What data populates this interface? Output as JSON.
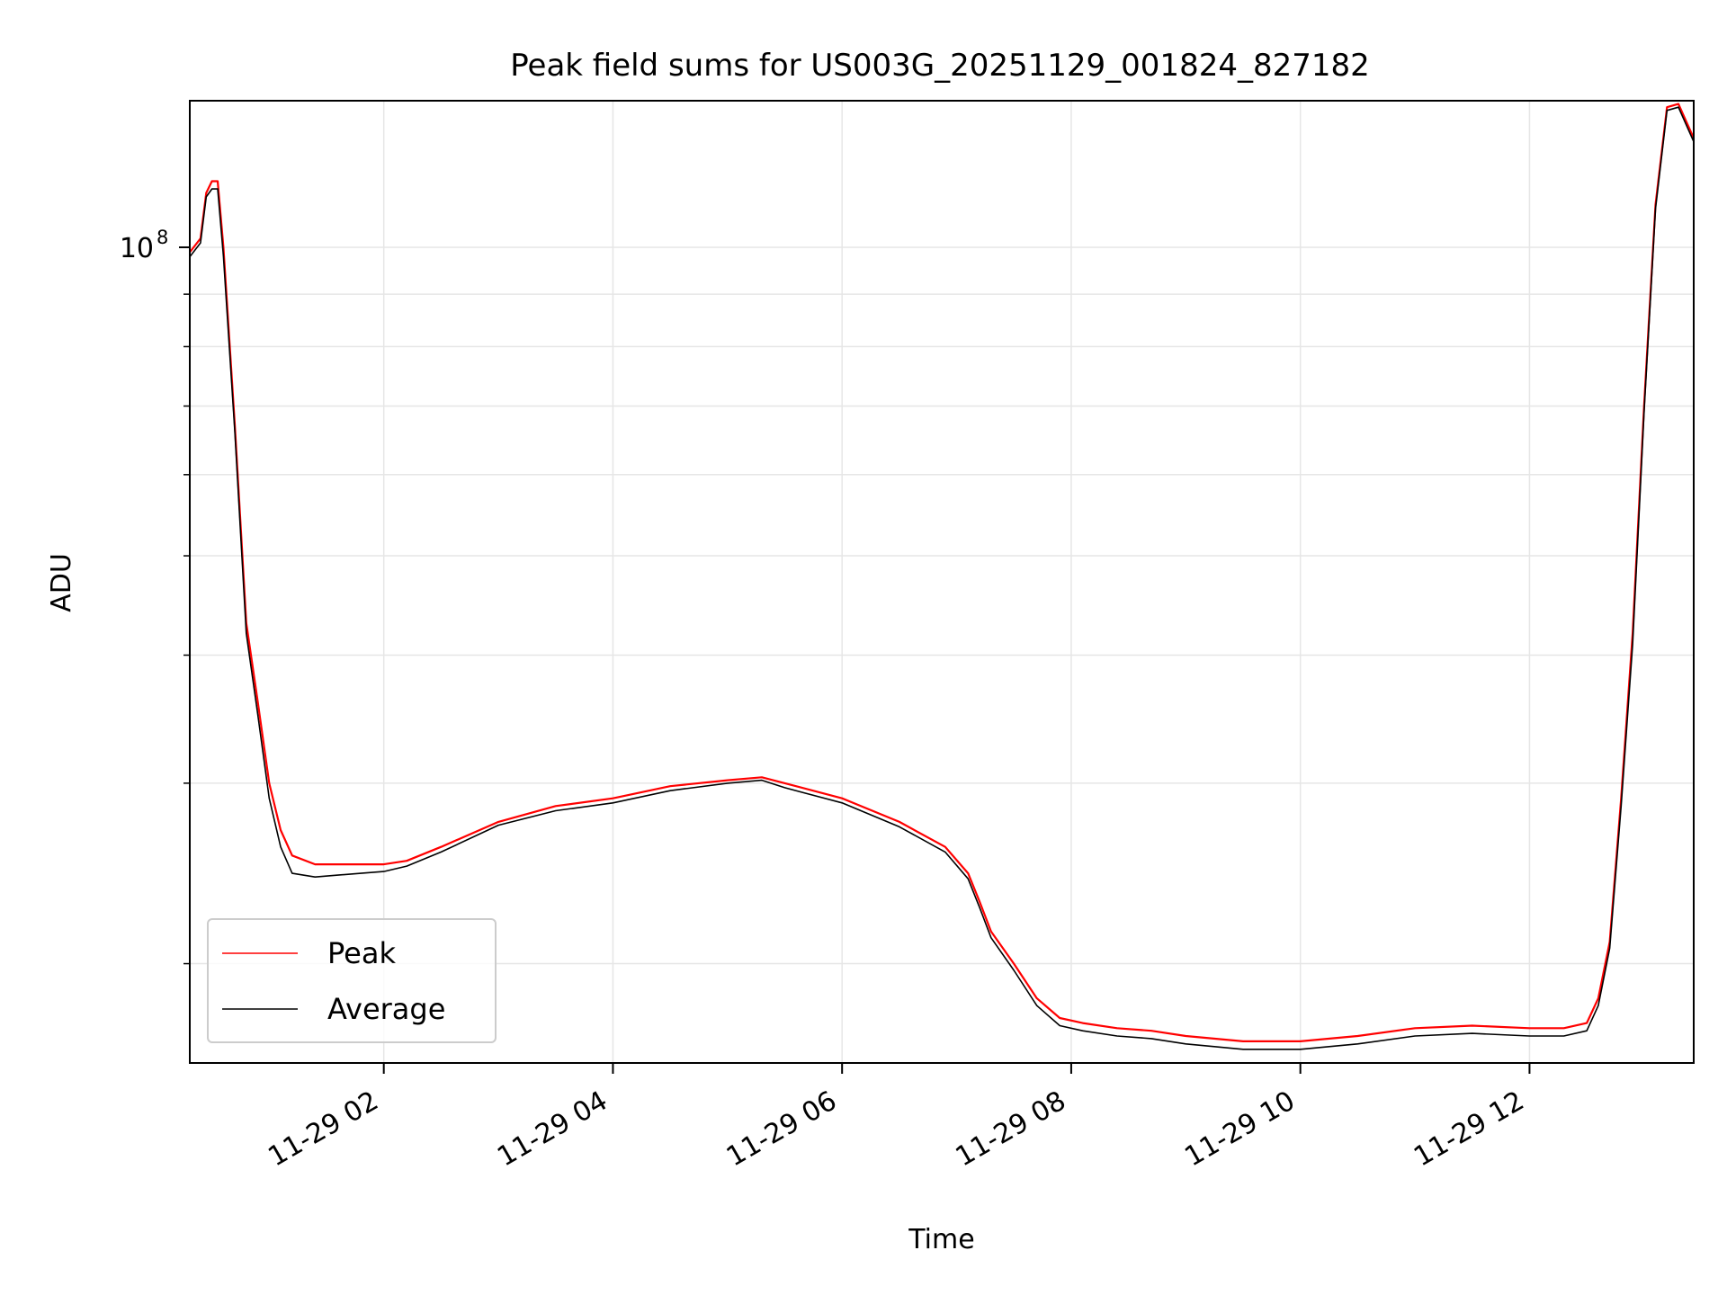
{
  "chart_data": {
    "type": "line",
    "title": "Peak field sums for US003G_20251129_001824_827182",
    "xlabel": "Time",
    "ylabel": "ADU",
    "yscale": "log",
    "xlim": [
      0.3067,
      13.4333
    ],
    "ylim": [
      16000000,
      139000000
    ],
    "grid": true,
    "legend_position": "lower-left",
    "x_ticks": [
      {
        "value": 2,
        "label": "11-29 02"
      },
      {
        "value": 4,
        "label": "11-29 04"
      },
      {
        "value": 6,
        "label": "11-29 06"
      },
      {
        "value": 8,
        "label": "11-29 08"
      },
      {
        "value": 10,
        "label": "11-29 10"
      },
      {
        "value": 12,
        "label": "11-29 12"
      }
    ],
    "y_major_ticks": [
      {
        "value": 100000000,
        "base": "10",
        "exponent": "8"
      }
    ],
    "y_minor_ticks": [
      20000000,
      30000000,
      40000000,
      50000000,
      60000000,
      70000000,
      80000000,
      90000000
    ],
    "colors": {
      "peak": "#ff0000",
      "average": "#000000",
      "grid": "#e6e6e6"
    },
    "series": [
      {
        "name": "Peak",
        "color": "#ff0000",
        "x": [
          0.31,
          0.4,
          0.45,
          0.5,
          0.55,
          0.6,
          0.7,
          0.8,
          0.9,
          1.0,
          1.1,
          1.2,
          1.4,
          1.6,
          1.8,
          2.0,
          2.2,
          2.5,
          3.0,
          3.5,
          4.0,
          4.5,
          5.0,
          5.3,
          5.5,
          6.0,
          6.5,
          6.9,
          7.1,
          7.2,
          7.3,
          7.5,
          7.7,
          7.9,
          8.1,
          8.4,
          8.7,
          9.0,
          9.5,
          10.0,
          10.5,
          11.0,
          11.5,
          12.0,
          12.3,
          12.5,
          12.6,
          12.7,
          12.8,
          12.9,
          13.0,
          13.1,
          13.2,
          13.3,
          13.43
        ],
        "values": [
          99000000,
          102000000,
          113000000,
          116000000,
          116000000,
          100000000,
          67000000,
          43000000,
          36000000,
          30000000,
          27000000,
          25500000,
          25000000,
          25000000,
          25000000,
          25000000,
          25200000,
          26000000,
          27500000,
          28500000,
          29000000,
          29800000,
          30200000,
          30400000,
          30000000,
          29000000,
          27500000,
          26000000,
          24500000,
          23000000,
          21500000,
          20000000,
          18500000,
          17700000,
          17500000,
          17300000,
          17200000,
          17000000,
          16800000,
          16800000,
          17000000,
          17300000,
          17400000,
          17300000,
          17300000,
          17500000,
          18500000,
          21000000,
          29000000,
          42000000,
          70000000,
          110000000,
          137000000,
          138000000,
          128000000
        ]
      },
      {
        "name": "Average",
        "color": "#000000",
        "x": [
          0.31,
          0.4,
          0.45,
          0.5,
          0.55,
          0.6,
          0.7,
          0.8,
          0.9,
          1.0,
          1.1,
          1.2,
          1.4,
          1.6,
          1.8,
          2.0,
          2.2,
          2.5,
          3.0,
          3.5,
          4.0,
          4.5,
          5.0,
          5.3,
          5.5,
          6.0,
          6.5,
          6.9,
          7.1,
          7.2,
          7.3,
          7.5,
          7.7,
          7.9,
          8.1,
          8.4,
          8.7,
          9.0,
          9.5,
          10.0,
          10.5,
          11.0,
          11.5,
          12.0,
          12.3,
          12.5,
          12.6,
          12.7,
          12.8,
          12.9,
          13.0,
          13.1,
          13.2,
          13.3,
          13.43
        ],
        "values": [
          98000000,
          101000000,
          112000000,
          114000000,
          114000000,
          98000000,
          66000000,
          42000000,
          35000000,
          29000000,
          26000000,
          24500000,
          24300000,
          24400000,
          24500000,
          24600000,
          24900000,
          25700000,
          27300000,
          28200000,
          28700000,
          29500000,
          30000000,
          30200000,
          29700000,
          28700000,
          27200000,
          25700000,
          24200000,
          22700000,
          21200000,
          19700000,
          18200000,
          17400000,
          17200000,
          17000000,
          16900000,
          16700000,
          16500000,
          16500000,
          16700000,
          17000000,
          17100000,
          17000000,
          17000000,
          17200000,
          18200000,
          20700000,
          28500000,
          41000000,
          69000000,
          109000000,
          136000000,
          137000000,
          127000000
        ]
      }
    ]
  }
}
